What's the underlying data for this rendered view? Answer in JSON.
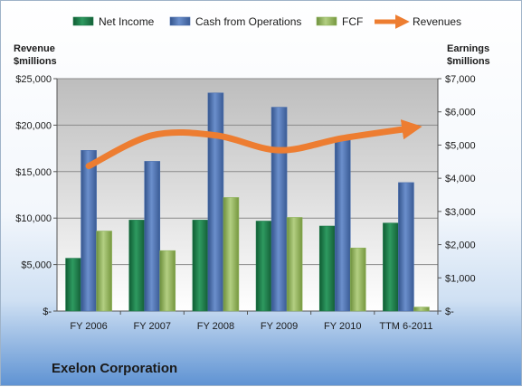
{
  "company_label": "Exelon Corporation",
  "chart_data": {
    "type": "bar",
    "categories": [
      "FY 2006",
      "FY 2007",
      "FY 2008",
      "FY 2009",
      "FY 2010",
      "TTM 6-2011"
    ],
    "series": [
      {
        "name": "Net Income",
        "axis": "right",
        "values": [
          1590,
          2740,
          2740,
          2710,
          2560,
          2650
        ],
        "color": "#1e7a4a"
      },
      {
        "name": "Cash from Operations",
        "axis": "right",
        "values": [
          4840,
          4510,
          6570,
          6140,
          5240,
          3870
        ],
        "color": "#4a6fae"
      },
      {
        "name": "FCF",
        "axis": "right",
        "values": [
          2410,
          1820,
          3420,
          2820,
          1900,
          120
        ],
        "color": "#8db25a"
      },
      {
        "name": "Revenues",
        "type": "line",
        "axis": "left",
        "values": [
          15600,
          18900,
          18900,
          17300,
          18600,
          19600
        ],
        "color": "#ed7d31"
      }
    ],
    "left_axis": {
      "title_line1": "Revenue",
      "title_line2": "$millions",
      "ylim": [
        0,
        25000
      ],
      "ticks": [
        "$-",
        "$5,000",
        "$10,000",
        "$15,000",
        "$20,000",
        "$25,000"
      ]
    },
    "right_axis": {
      "title_line1": "Earnings",
      "title_line2": "$millions",
      "ylim": [
        0,
        7000
      ],
      "ticks": [
        "$-",
        "$1,000",
        "$2,000",
        "$3,000",
        "$4,000",
        "$5,000",
        "$6,000",
        "$7,000"
      ]
    },
    "legend": [
      "Net Income",
      "Cash from Operations",
      "FCF",
      "Revenues"
    ],
    "legend_position": "top",
    "grid": true
  }
}
